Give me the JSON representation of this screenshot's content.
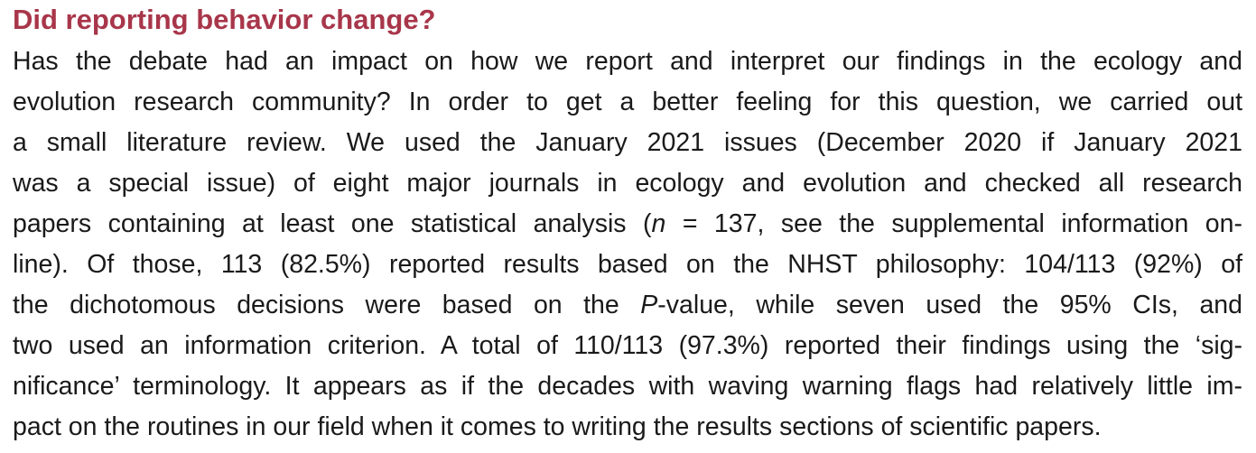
{
  "section": {
    "heading": "Did reporting behavior change?",
    "lines": [
      "Has the debate had an impact on how we report and interpret our findings in the ecology and",
      "evolution research community? In order to get a better feeling for this question, we carried out",
      "a small literature review. We used the January 2021 issues (December 2020 if January 2021",
      "was a special issue) of eight major journals in ecology and evolution and checked all research",
      {
        "a": "papers containing at least one statistical analysis (",
        "b": "n",
        "c": " = 137, see the supplemental information on-"
      },
      "line). Of those, 113 (82.5%) reported results based on the NHST philosophy: 104/113 (92%) of",
      {
        "a": "the dichotomous decisions were based on the ",
        "b": "P",
        "c": "-value, while seven used the 95% CIs, and"
      },
      "two used an information criterion. A total of 110/113 (97.3%) reported their findings using the ‘sig-",
      "nificance’ terminology. It appears as if the decades with waving warning flags had relatively little im-",
      "pact on the routines in our field when it comes to writing the results sections of scientific papers."
    ]
  }
}
